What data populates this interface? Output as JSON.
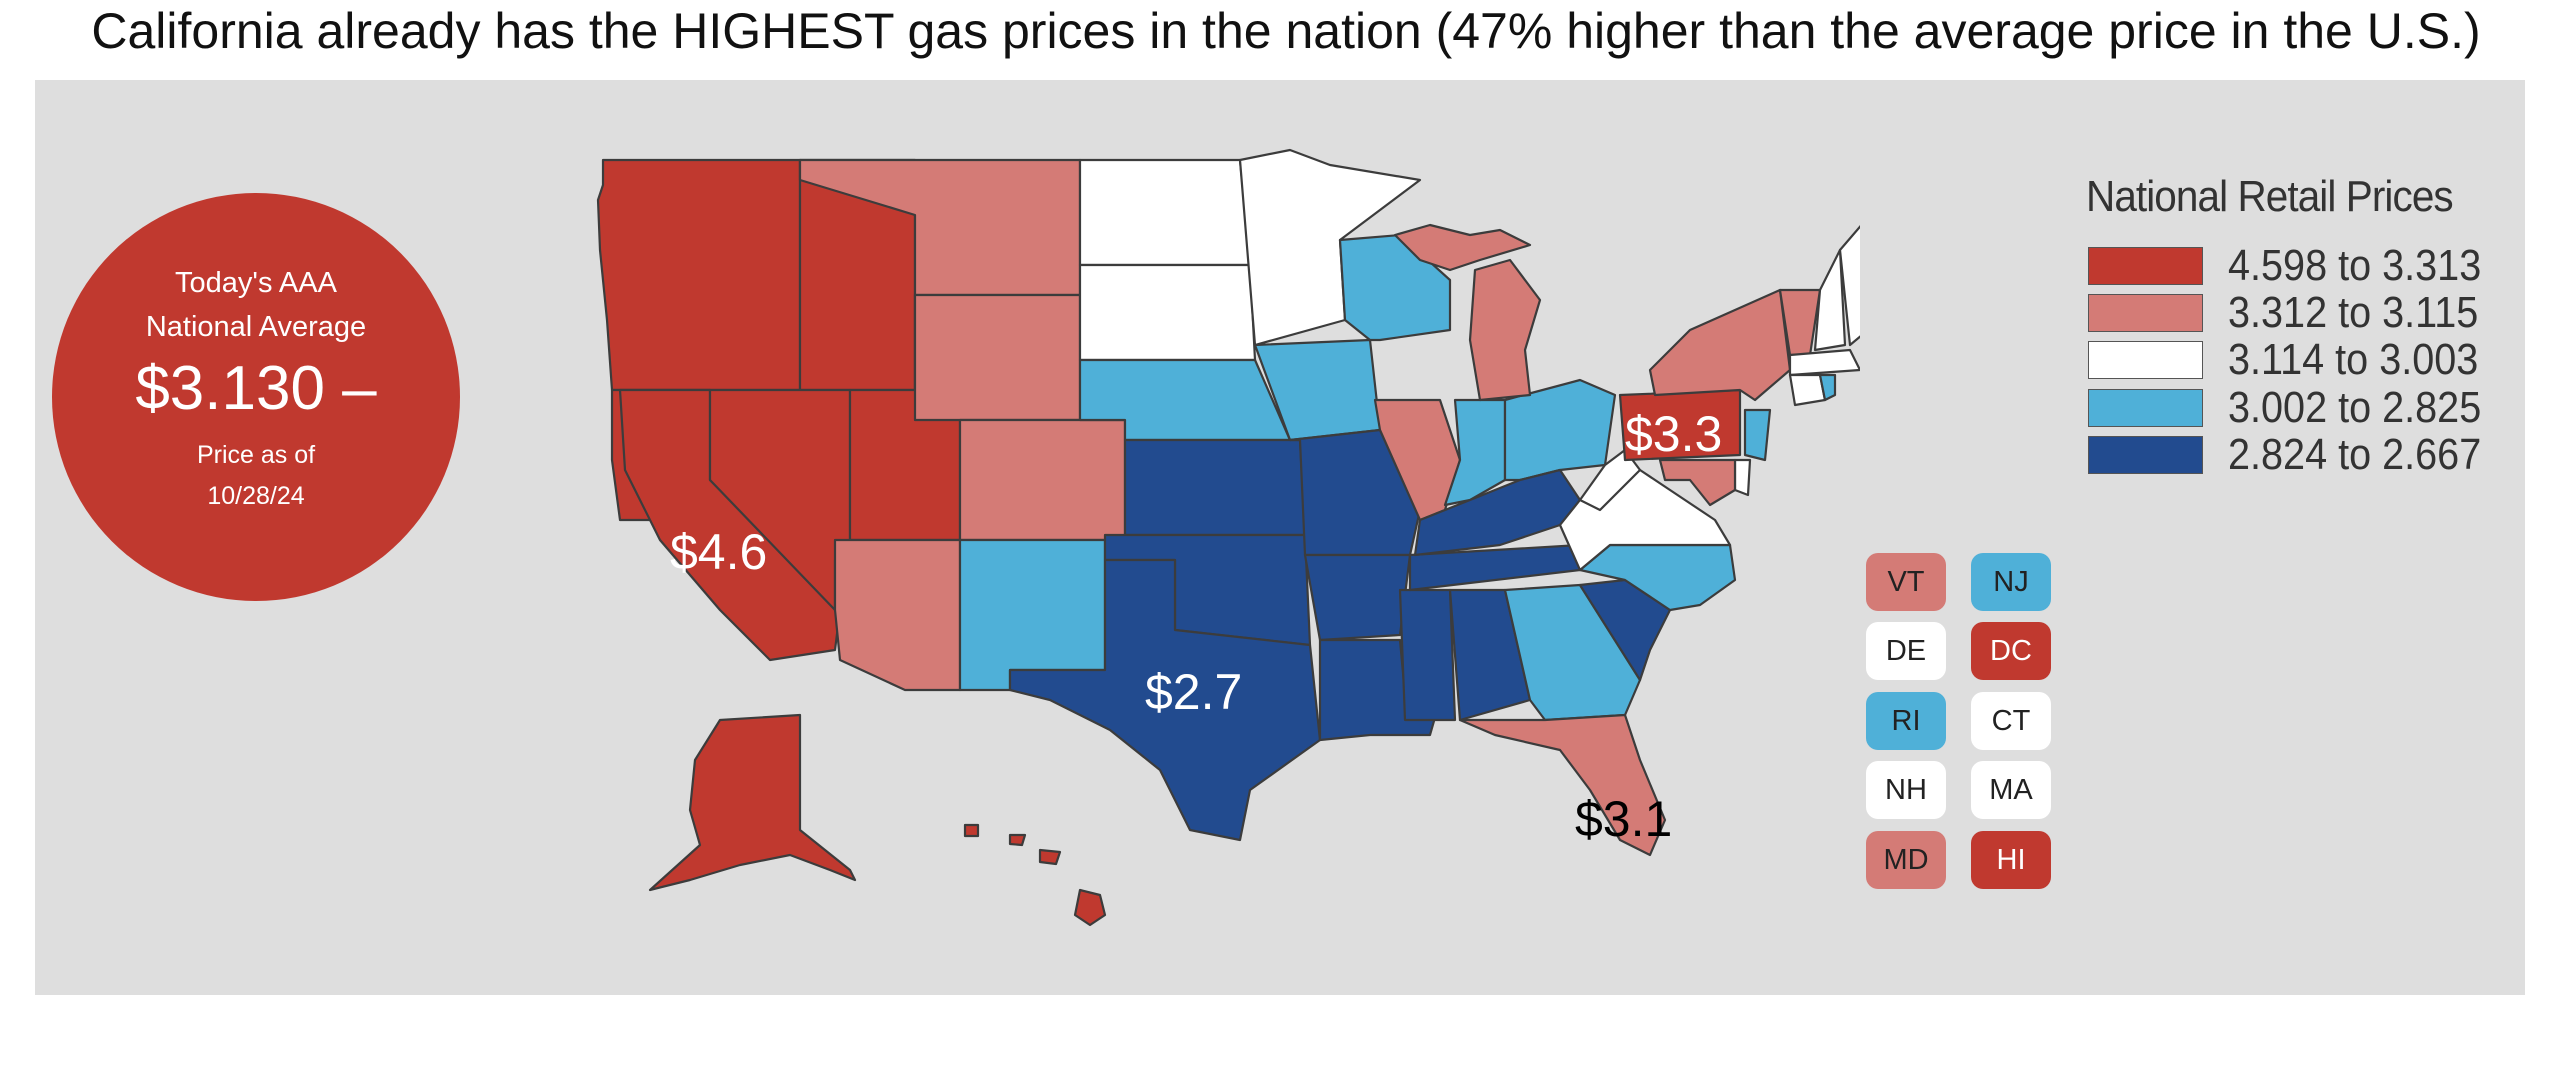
{
  "title": "California already has the HIGHEST gas prices in the nation (47% higher than the average price in the U.S.)",
  "average": {
    "line1": "Today's AAA",
    "line2": "National Average",
    "price": "$3.130 –",
    "line3": "Price as of",
    "line4": "10/28/24"
  },
  "legend": {
    "title": "National Retail Prices",
    "items": [
      {
        "label": "4.598 to 3.313",
        "color": "#c0392f"
      },
      {
        "label": "3.312 to 3.115",
        "color": "#d47b76"
      },
      {
        "label": "3.114 to 3.003",
        "color": "#ffffff"
      },
      {
        "label": "3.002 to 2.825",
        "color": "#4fb0d8"
      },
      {
        "label": "2.824 to 2.667",
        "color": "#224b8f"
      }
    ]
  },
  "callouts": {
    "ca": "$4.6",
    "tx": "$2.7",
    "pa": "$3.3",
    "fl": "$3.1"
  },
  "small_states": [
    {
      "code": "VT",
      "tier": 1
    },
    {
      "code": "NJ",
      "tier": 3
    },
    {
      "code": "DE",
      "tier": 2
    },
    {
      "code": "DC",
      "tier": 0
    },
    {
      "code": "RI",
      "tier": 3
    },
    {
      "code": "CT",
      "tier": 2
    },
    {
      "code": "NH",
      "tier": 2
    },
    {
      "code": "MA",
      "tier": 2
    },
    {
      "code": "MD",
      "tier": 1
    },
    {
      "code": "HI",
      "tier": 0
    }
  ]
}
